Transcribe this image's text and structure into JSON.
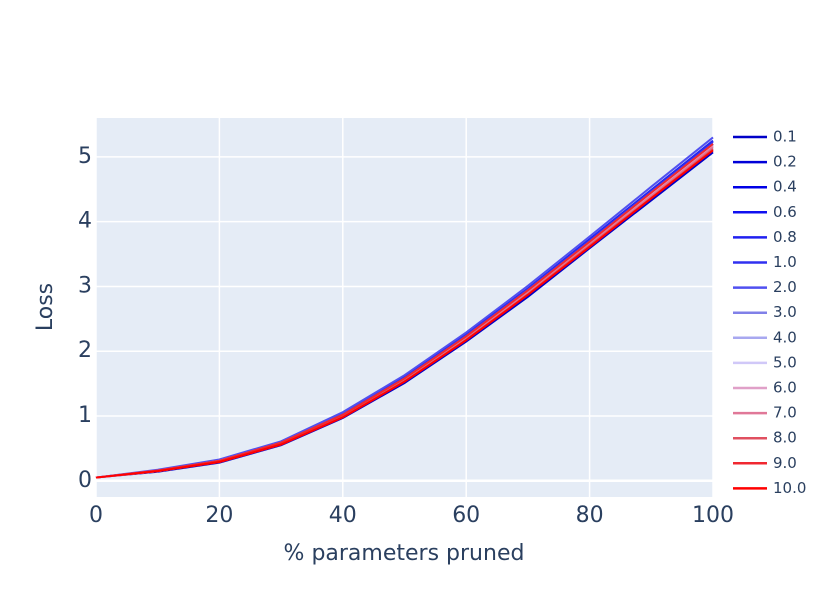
{
  "chart_data": {
    "type": "line",
    "xlabel": "% parameters pruned",
    "ylabel": "Loss",
    "x": [
      0,
      10,
      20,
      30,
      40,
      50,
      60,
      70,
      80,
      90,
      100
    ],
    "xlim": [
      0,
      100
    ],
    "xticks": [
      0,
      20,
      40,
      60,
      80,
      100
    ],
    "ylim": [
      -0.25,
      5.6
    ],
    "yticks": [
      0,
      1,
      2,
      3,
      4,
      5
    ],
    "grid": true,
    "series": [
      {
        "name": "0.1",
        "color": "#0000c8",
        "values": [
          0.05,
          0.14,
          0.28,
          0.55,
          0.97,
          1.51,
          2.15,
          2.84,
          3.59,
          4.33,
          5.07
        ]
      },
      {
        "name": "0.2",
        "color": "#0000d8",
        "values": [
          0.05,
          0.15,
          0.29,
          0.56,
          0.98,
          1.53,
          2.17,
          2.87,
          3.61,
          4.36,
          5.1
        ]
      },
      {
        "name": "0.4",
        "color": "#0000e6",
        "values": [
          0.05,
          0.15,
          0.3,
          0.57,
          1.0,
          1.55,
          2.2,
          2.9,
          3.65,
          4.4,
          5.15
        ]
      },
      {
        "name": "0.6",
        "color": "#1010f0",
        "values": [
          0.05,
          0.16,
          0.31,
          0.59,
          1.02,
          1.58,
          2.23,
          2.94,
          3.69,
          4.45,
          5.2
        ]
      },
      {
        "name": "0.8",
        "color": "#2020f0",
        "values": [
          0.05,
          0.16,
          0.32,
          0.6,
          1.04,
          1.6,
          2.26,
          2.97,
          3.73,
          4.49,
          5.25
        ]
      },
      {
        "name": "1.0",
        "color": "#3030f0",
        "values": [
          0.05,
          0.16,
          0.32,
          0.59,
          1.03,
          1.59,
          2.25,
          2.96,
          3.71,
          4.47,
          5.23
        ]
      },
      {
        "name": "2.0",
        "color": "#5050f0",
        "values": [
          0.05,
          0.17,
          0.33,
          0.61,
          1.06,
          1.63,
          2.29,
          3.01,
          3.77,
          4.54,
          5.3
        ]
      },
      {
        "name": "3.0",
        "color": "#8080e8",
        "values": [
          0.05,
          0.16,
          0.31,
          0.59,
          1.02,
          1.58,
          2.23,
          2.94,
          3.69,
          4.45,
          5.2
        ]
      },
      {
        "name": "4.0",
        "color": "#a8a8f0",
        "values": [
          0.05,
          0.15,
          0.31,
          0.58,
          1.01,
          1.57,
          2.22,
          2.92,
          3.67,
          4.43,
          5.18
        ]
      },
      {
        "name": "5.0",
        "color": "#d0c8f8",
        "values": [
          0.05,
          0.15,
          0.3,
          0.57,
          1.0,
          1.55,
          2.2,
          2.9,
          3.65,
          4.4,
          5.15
        ]
      },
      {
        "name": "6.0",
        "color": "#e0a0c8",
        "values": [
          0.05,
          0.15,
          0.3,
          0.58,
          1.01,
          1.56,
          2.21,
          2.91,
          3.67,
          4.42,
          5.17
        ]
      },
      {
        "name": "7.0",
        "color": "#e07898",
        "values": [
          0.05,
          0.15,
          0.3,
          0.57,
          1.0,
          1.55,
          2.2,
          2.9,
          3.65,
          4.4,
          5.15
        ]
      },
      {
        "name": "8.0",
        "color": "#e05060",
        "values": [
          0.05,
          0.15,
          0.29,
          0.56,
          0.99,
          1.54,
          2.18,
          2.88,
          3.63,
          4.37,
          5.12
        ]
      },
      {
        "name": "9.0",
        "color": "#f02830",
        "values": [
          0.05,
          0.16,
          0.31,
          0.59,
          1.02,
          1.58,
          2.23,
          2.94,
          3.69,
          4.45,
          5.2
        ]
      },
      {
        "name": "10.0",
        "color": "#ff0000",
        "values": [
          0.05,
          0.15,
          0.29,
          0.56,
          0.98,
          1.53,
          2.17,
          2.87,
          3.61,
          4.36,
          5.1
        ]
      }
    ]
  }
}
